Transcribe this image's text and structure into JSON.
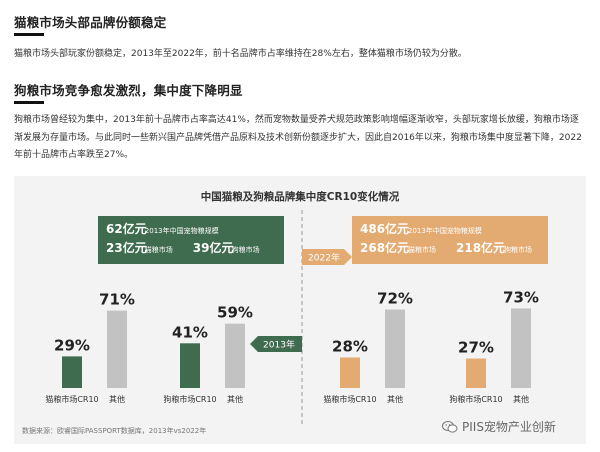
{
  "sections": [
    {
      "heading": "猫粮市场头部品牌份额稳定",
      "body": "猫粮市场头部玩家份额稳定，2013年至2022年，前十名品牌市占率维持在28%左右，整体猫粮市场仍较为分散。"
    },
    {
      "heading": "狗粮市场竞争愈发激烈，集中度下降明显",
      "body": "狗粮市场曾经较为集中，2013年前十品牌市占率高达41%，然而宠物数量受养犬规范政策影响增幅逐渐收窄，头部玩家增长放缓，狗粮市场逐渐发展为存量市场。与此同时一些新兴国产品牌凭借产品原料及技术创新份额逐步扩大，因此自2016年以来，狗粮市场集中度显著下降，2022年前十品牌市占率跌至27%。"
    }
  ],
  "chart_data": {
    "type": "bar",
    "title": "中国猫粮及狗粮品牌集中度CR10变化情况",
    "ylim": [
      0,
      100
    ],
    "year_tags": [
      "2013年",
      "2022年"
    ],
    "colors": {
      "green": "#3f6b4e",
      "orange": "#e3aa72",
      "gray": "#c2c2c2",
      "green_dark": "#3f6b4e"
    },
    "info_2013": [
      {
        "value": "62亿元",
        "desc": "2013年中国宠物粮规模"
      },
      {
        "value": "23亿元",
        "desc": "猫粮市场"
      },
      {
        "value": "39亿元",
        "desc": "狗粮市场"
      }
    ],
    "info_2022": [
      {
        "value": "486亿元",
        "desc": "2013年中国宠物粮规模"
      },
      {
        "value": "268亿元",
        "desc": "猫粮市场"
      },
      {
        "value": "218亿元",
        "desc": "狗粮市场"
      }
    ],
    "groups": [
      {
        "year": "2013年",
        "market": "猫粮",
        "categories": [
          "猫粮市场CR10",
          "其他"
        ],
        "values": [
          29,
          71
        ],
        "labels": [
          "29%",
          "71%"
        ],
        "color": "green"
      },
      {
        "year": "2013年",
        "market": "狗粮",
        "categories": [
          "狗粮市场CR10",
          "其他"
        ],
        "values": [
          41,
          59
        ],
        "labels": [
          "41%",
          "59%"
        ],
        "color": "green"
      },
      {
        "year": "2022年",
        "market": "猫粮",
        "categories": [
          "猫粮市场CR10",
          "其他"
        ],
        "values": [
          28,
          72
        ],
        "labels": [
          "28%",
          "72%"
        ],
        "color": "orange"
      },
      {
        "year": "2022年",
        "market": "狗粮",
        "categories": [
          "狗粮市场CR10",
          "其他"
        ],
        "values": [
          27,
          73
        ],
        "labels": [
          "27%",
          "73%"
        ],
        "color": "orange"
      }
    ]
  },
  "source": "数据来源：欧睿国际PASSPORT数据库，2013年vs2022年",
  "watermark": "PIIS宠物产业创新"
}
